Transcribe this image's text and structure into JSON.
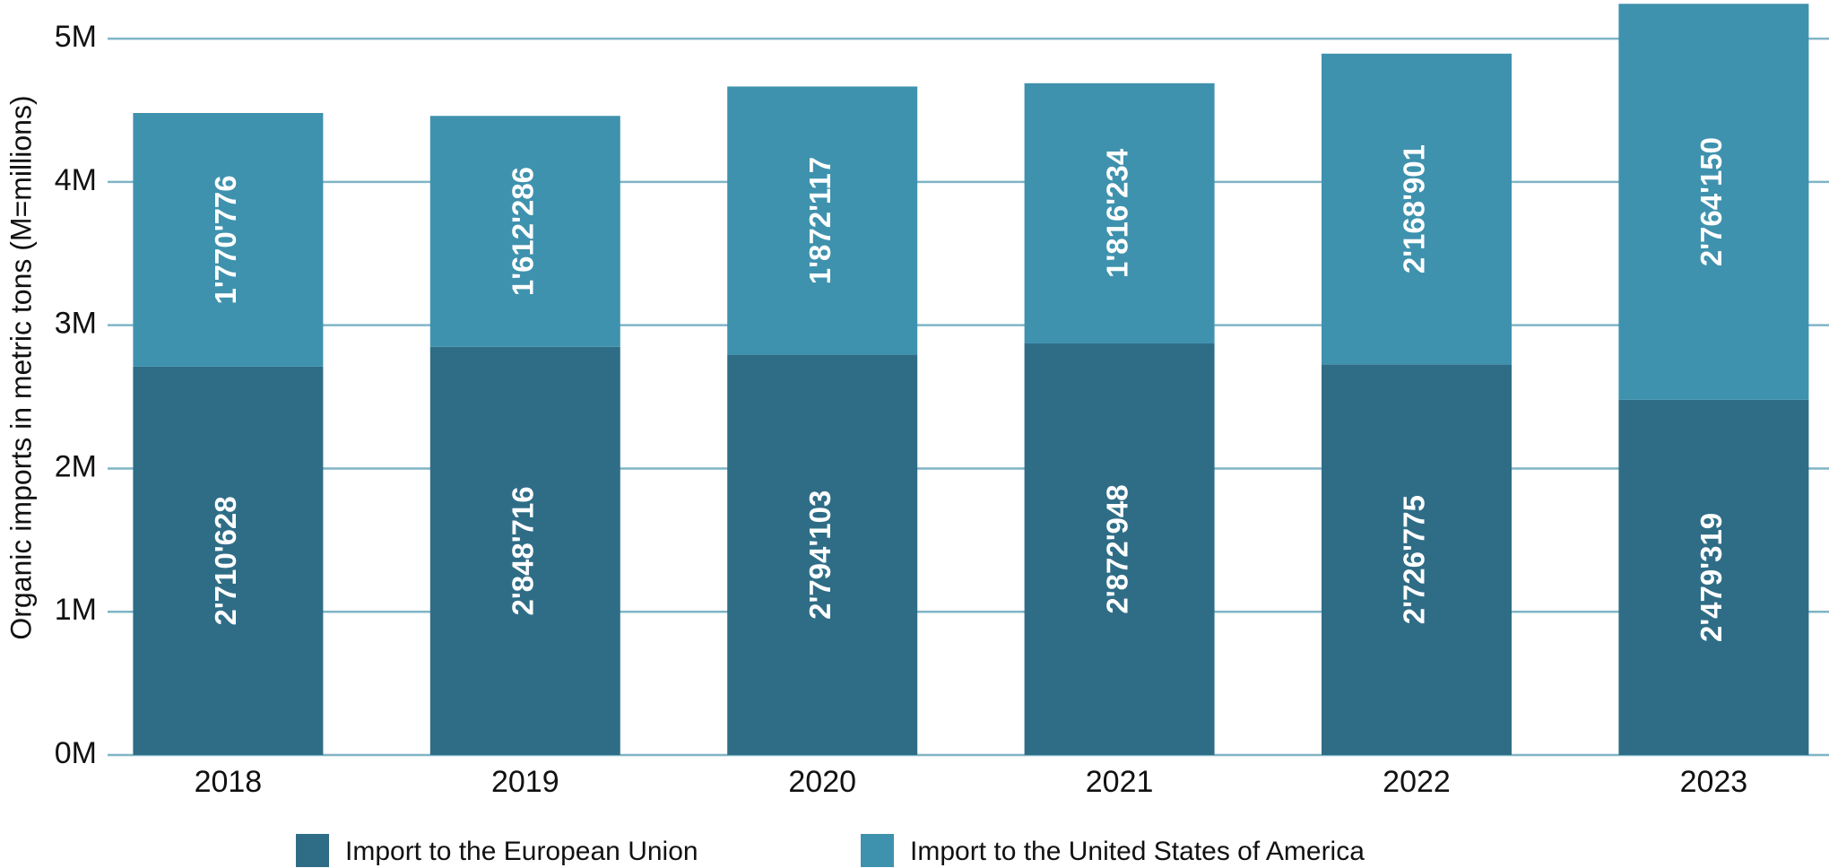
{
  "chart_data": {
    "type": "stacked_bar",
    "y_axis_label": "Organic imports in metric tons (M=millions)",
    "categories": [
      "2018",
      "2019",
      "2020",
      "2021",
      "2022",
      "2023"
    ],
    "series": [
      {
        "name": "Import to the European Union",
        "color": "#2f6d87",
        "values": [
          2710628,
          2848716,
          2794103,
          2872948,
          2726775,
          2479319
        ],
        "value_labels": [
          "2'710'628",
          "2'848'716",
          "2'794'103",
          "2'872'948",
          "2'726'775",
          "2'479'319"
        ]
      },
      {
        "name": "Import to the United States of America",
        "color": "#3f92ae",
        "values": [
          1770776,
          1612286,
          1872117,
          1816234,
          2168901,
          2764150
        ],
        "value_labels": [
          "1'770'776",
          "1'612'286",
          "1'872'117",
          "1'816'234",
          "2'168'901",
          "2'764'150"
        ]
      }
    ],
    "ylim": [
      0,
      5270000
    ],
    "yticks": [
      {
        "value": 0,
        "label": "0M"
      },
      {
        "value": 1000000,
        "label": "1M"
      },
      {
        "value": 2000000,
        "label": "2M"
      },
      {
        "value": 3000000,
        "label": "3M"
      },
      {
        "value": 4000000,
        "label": "4M"
      },
      {
        "value": 5000000,
        "label": "5M"
      }
    ],
    "grid": true,
    "grid_color": "#7fb4c6",
    "legend": "bottom"
  }
}
